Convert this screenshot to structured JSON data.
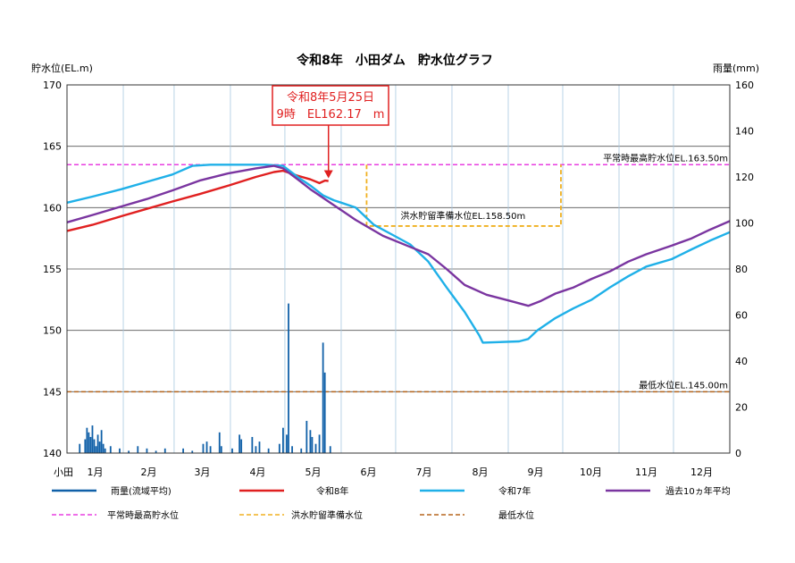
{
  "chart_data": {
    "type": "line",
    "title": "令和8年　小田ダム　貯水位グラフ",
    "ylabel": "貯水位(EL.m)",
    "y2label": "雨量(mm)",
    "corner_label": "小田",
    "ylim": [
      140,
      170
    ],
    "y_ticks": [
      140,
      145,
      150,
      155,
      160,
      165,
      170
    ],
    "y2lim": [
      0,
      160
    ],
    "y2_ticks": [
      0,
      20,
      40,
      60,
      80,
      100,
      120,
      140,
      160
    ],
    "x_unit": "day_of_year",
    "xlim": [
      1,
      366
    ],
    "months": [
      "1月",
      "2月",
      "3月",
      "4月",
      "5月",
      "6月",
      "7月",
      "8月",
      "9月",
      "10月",
      "11月",
      "12月"
    ],
    "grid": true,
    "callout": {
      "line1": "令和8年5月25日",
      "line2": "9時　EL162.17　m",
      "x": 145,
      "y": 162.17
    },
    "reference_lines": [
      {
        "key": "normal",
        "label": "平常時最高貯水位EL.163.50m",
        "value": 163.5,
        "color": "#e83ee0"
      },
      {
        "key": "minimum",
        "label": "最低水位EL.145.00m",
        "value": 145.0,
        "color": "#b5651d"
      }
    ],
    "flood_reserve": {
      "label": "洪水貯留準備水位EL.158.50m",
      "value": 158.5,
      "top": 163.5,
      "start_day": 166,
      "end_day": 273,
      "color": "#f0b020"
    },
    "series": [
      {
        "key": "r8",
        "name": "令和8年",
        "color": "#e02020",
        "points": [
          [
            1,
            158.1
          ],
          [
            15,
            158.6
          ],
          [
            31,
            159.3
          ],
          [
            45,
            159.9
          ],
          [
            59,
            160.5
          ],
          [
            74,
            161.1
          ],
          [
            90,
            161.8
          ],
          [
            105,
            162.5
          ],
          [
            115,
            162.9
          ],
          [
            120,
            163.0
          ],
          [
            128,
            162.6
          ],
          [
            135,
            162.3
          ],
          [
            140,
            162.0
          ],
          [
            143,
            162.2
          ],
          [
            145,
            162.17
          ]
        ]
      },
      {
        "key": "r7",
        "name": "令和7年",
        "color": "#1fb0e8",
        "points": [
          [
            1,
            160.4
          ],
          [
            15,
            160.9
          ],
          [
            31,
            161.5
          ],
          [
            45,
            162.1
          ],
          [
            59,
            162.7
          ],
          [
            70,
            163.4
          ],
          [
            80,
            163.5
          ],
          [
            110,
            163.5
          ],
          [
            120,
            163.4
          ],
          [
            128,
            162.5
          ],
          [
            135,
            161.8
          ],
          [
            142,
            161.0
          ],
          [
            148,
            160.6
          ],
          [
            152,
            160.4
          ],
          [
            160,
            160.0
          ],
          [
            170,
            158.6
          ],
          [
            180,
            157.8
          ],
          [
            190,
            157.0
          ],
          [
            200,
            155.6
          ],
          [
            210,
            153.5
          ],
          [
            220,
            151.5
          ],
          [
            228,
            149.6
          ],
          [
            230,
            149.0
          ],
          [
            250,
            149.1
          ],
          [
            255,
            149.3
          ],
          [
            260,
            150.0
          ],
          [
            270,
            151.0
          ],
          [
            280,
            151.8
          ],
          [
            290,
            152.5
          ],
          [
            300,
            153.5
          ],
          [
            310,
            154.4
          ],
          [
            320,
            155.2
          ],
          [
            334,
            155.8
          ],
          [
            345,
            156.6
          ],
          [
            355,
            157.3
          ],
          [
            366,
            158.0
          ]
        ]
      },
      {
        "key": "avg10",
        "name": "過去10ヵ年平均",
        "color": "#7a35a0",
        "points": [
          [
            1,
            158.8
          ],
          [
            15,
            159.4
          ],
          [
            31,
            160.1
          ],
          [
            45,
            160.7
          ],
          [
            59,
            161.4
          ],
          [
            74,
            162.2
          ],
          [
            90,
            162.8
          ],
          [
            105,
            163.2
          ],
          [
            115,
            163.4
          ],
          [
            120,
            163.2
          ],
          [
            128,
            162.3
          ],
          [
            135,
            161.5
          ],
          [
            145,
            160.5
          ],
          [
            160,
            159.0
          ],
          [
            175,
            157.7
          ],
          [
            190,
            156.8
          ],
          [
            200,
            156.2
          ],
          [
            210,
            155.0
          ],
          [
            220,
            153.7
          ],
          [
            232,
            152.9
          ],
          [
            245,
            152.4
          ],
          [
            255,
            152.0
          ],
          [
            262,
            152.4
          ],
          [
            270,
            153.0
          ],
          [
            280,
            153.5
          ],
          [
            290,
            154.2
          ],
          [
            300,
            154.8
          ],
          [
            310,
            155.6
          ],
          [
            320,
            156.2
          ],
          [
            334,
            156.9
          ],
          [
            345,
            157.5
          ],
          [
            355,
            158.2
          ],
          [
            366,
            158.9
          ]
        ]
      }
    ],
    "rainfall": {
      "name": "雨量(流域平均)",
      "color": "#1060a8",
      "bars": [
        [
          8,
          4
        ],
        [
          11,
          6
        ],
        [
          12,
          11
        ],
        [
          13,
          9
        ],
        [
          14,
          7
        ],
        [
          15,
          12
        ],
        [
          16,
          6
        ],
        [
          17,
          3
        ],
        [
          18,
          8
        ],
        [
          19,
          5
        ],
        [
          20,
          10
        ],
        [
          21,
          4
        ],
        [
          22,
          2
        ],
        [
          25,
          3
        ],
        [
          30,
          2
        ],
        [
          35,
          1
        ],
        [
          40,
          3
        ],
        [
          45,
          2
        ],
        [
          50,
          1
        ],
        [
          55,
          2
        ],
        [
          65,
          2
        ],
        [
          70,
          1
        ],
        [
          76,
          4
        ],
        [
          78,
          5
        ],
        [
          80,
          3
        ],
        [
          85,
          9
        ],
        [
          86,
          3
        ],
        [
          92,
          2
        ],
        [
          96,
          8
        ],
        [
          97,
          6
        ],
        [
          103,
          7
        ],
        [
          105,
          3
        ],
        [
          107,
          5
        ],
        [
          112,
          2
        ],
        [
          118,
          4
        ],
        [
          120,
          11
        ],
        [
          122,
          8
        ],
        [
          123,
          65
        ],
        [
          125,
          3
        ],
        [
          130,
          2
        ],
        [
          133,
          14
        ],
        [
          135,
          10
        ],
        [
          136,
          7
        ],
        [
          138,
          4
        ],
        [
          140,
          8
        ],
        [
          142,
          48
        ],
        [
          143,
          35
        ],
        [
          146,
          3
        ]
      ]
    }
  },
  "legend": {
    "rainfall": "雨量(流域平均)",
    "r8": "令和8年",
    "r7": "令和7年",
    "avg10": "過去10ヵ年平均",
    "normal": "平常時最高貯水位",
    "flood": "洪水貯留準備水位",
    "minimum": "最低水位"
  }
}
